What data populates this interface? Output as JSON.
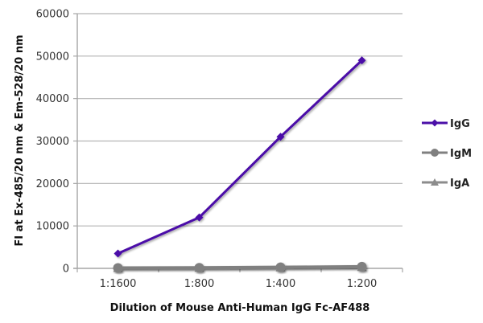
{
  "chart_data": {
    "type": "line",
    "title": "",
    "xlabel": "Dilution of Mouse Anti-Human IgG Fc-AF488",
    "ylabel": "FI at Ex-485/20 nm & Em-528/20 nm",
    "categories": [
      "1:1600",
      "1:800",
      "1:400",
      "1:200"
    ],
    "ylim": [
      0,
      60000
    ],
    "yticks": [
      0,
      10000,
      20000,
      30000,
      40000,
      50000,
      60000
    ],
    "grid": true,
    "legend_position": "right",
    "series": [
      {
        "name": "IgG",
        "values": [
          3500,
          12000,
          31000,
          49000
        ],
        "color": "#4B0FA8",
        "marker": "diamond"
      },
      {
        "name": "IgM",
        "values": [
          100,
          150,
          250,
          400
        ],
        "color": "#808080",
        "marker": "circle"
      },
      {
        "name": "IgA",
        "values": [
          50,
          100,
          200,
          300
        ],
        "color": "#8C8C8C",
        "marker": "triangle"
      }
    ]
  }
}
